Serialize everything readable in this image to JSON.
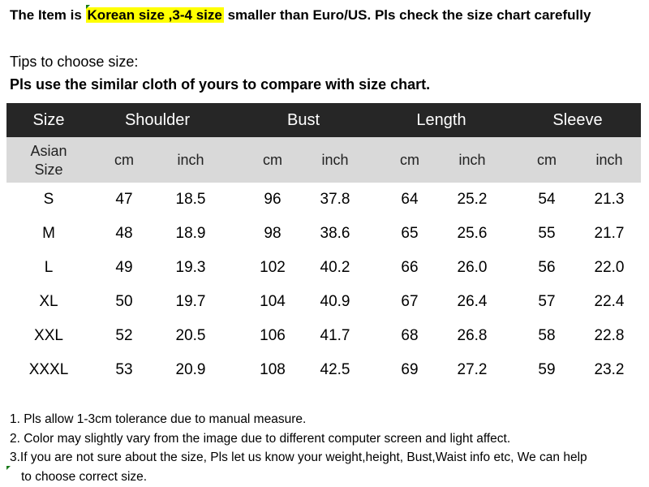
{
  "title": {
    "before": "The Item is ",
    "highlight": "Korean size ,3-4 size",
    "after": " smaller than Euro/US. Pls check the size chart carefully",
    "highlight_color": "#ffff00"
  },
  "tips": {
    "label": "Tips to choose size:",
    "advice": "Pls use the similar cloth of yours to compare with size chart."
  },
  "table": {
    "header_bg": "#262626",
    "subheader_bg": "#d9d9d9",
    "headers": [
      "Size",
      "Shoulder",
      "Bust",
      "Length",
      "Sleeve"
    ],
    "subheaders": [
      "Asian",
      "Size",
      "cm",
      "inch",
      "cm",
      "inch",
      "cm",
      "inch",
      "cm",
      "inch"
    ],
    "rows": [
      [
        "S",
        "47",
        "18.5",
        "96",
        "37.8",
        "64",
        "25.2",
        "54",
        "21.3"
      ],
      [
        "M",
        "48",
        "18.9",
        "98",
        "38.6",
        "65",
        "25.6",
        "55",
        "21.7"
      ],
      [
        "L",
        "49",
        "19.3",
        "102",
        "40.2",
        "66",
        "26.0",
        "56",
        "22.0"
      ],
      [
        "XL",
        "50",
        "19.7",
        "104",
        "40.9",
        "67",
        "26.4",
        "57",
        "22.4"
      ],
      [
        "XXL",
        "52",
        "20.5",
        "106",
        "41.7",
        "68",
        "26.8",
        "58",
        "22.8"
      ],
      [
        "XXXL",
        "53",
        "20.9",
        "108",
        "42.5",
        "69",
        "27.2",
        "59",
        "23.2"
      ]
    ]
  },
  "notes": [
    "1. Pls allow 1-3cm tolerance due to manual measure.",
    "2. Color may slightly vary from the image due to different computer screen and light affect.",
    "3.If you are not sure about the size, Pls let us know your weight,height, Bust,Waist info etc, We can help",
    "to choose correct size."
  ]
}
